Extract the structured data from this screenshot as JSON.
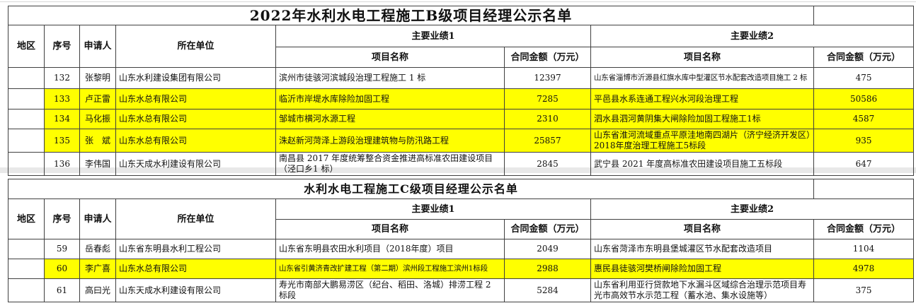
{
  "page": {
    "colors": {
      "background": "#ffffff",
      "highlight": "#ffff00",
      "border": "#404040",
      "pane_separator": "#e8e8e8"
    }
  },
  "tables": [
    {
      "id": "b-level",
      "title": "2022年水利水电工程施工B级项目经理公示名单",
      "columns": {
        "region": "地区",
        "no": "序号",
        "applicant": "申请人",
        "company": "所在单位",
        "perf1": "主要业绩1",
        "perf2": "主要业绩2",
        "project1": "项目名称",
        "amount1": "合同金额（万元）",
        "project2": "项目名称",
        "amount2": "合同金额（万元）"
      },
      "rows": [
        {
          "region": "",
          "no": "132",
          "applicant": "张黎明",
          "company": "山东水利建设集团有限公司",
          "project1": "滨州市徒骇河滨城段治理工程施工 1 标",
          "amount1": "12397",
          "project2": "山东省淄博市沂源县红旗水库中型灌区节水配套改造项目施工 2 标",
          "amount2": "475",
          "highlighted": false,
          "shrink": [
            "project2"
          ]
        },
        {
          "region": "",
          "no": "133",
          "applicant": "卢正雷",
          "company": "山东水总有限公司",
          "project1": "临沂市岸堤水库除险加固工程",
          "amount1": "7285",
          "project2": "平邑县水系连通工程兴水河段治理工程",
          "amount2": "50586",
          "highlighted": true,
          "shrink": []
        },
        {
          "region": "",
          "no": "134",
          "applicant": "马化振",
          "company": "山东水总有限公司",
          "project1": "邹城市横河水源工程",
          "amount1": "2310",
          "project2": "泗水县泗河黄阴集大闸除险加固工程施工1标",
          "amount2": "4587",
          "highlighted": true,
          "shrink": []
        },
        {
          "region": "",
          "no": "135",
          "applicant": "张　斌",
          "company": "山东水总有限公司",
          "project1": "洙赵新河菏泽上游段治理建筑物与防汛路工程",
          "amount1": "25857",
          "project2": "山东省淮河流域重点平原洼地南四湖片（济宁经济开发区）2018年度治理工程施工5标段",
          "amount2": "935",
          "highlighted": true,
          "shrink": []
        },
        {
          "region": "",
          "no": "136",
          "applicant": "李伟国",
          "company": "山东天成水利建设有限公司",
          "project1": "南昌县 2017 年度统筹整合资金推进高标准农田建设项目（泾口乡1 标）",
          "amount1": "2845",
          "project2": "武宁县 2021 年度高标准农田建设项目施工五标段",
          "amount2": "647",
          "highlighted": false,
          "shrink": []
        }
      ]
    },
    {
      "id": "c-level",
      "title": "水利水电工程施工C级项目经理公示名单",
      "columns": {
        "region": "地区",
        "no": "序号",
        "applicant": "申请人",
        "company": "所在单位",
        "perf1": "主要业绩1",
        "perf2": "主要业绩2",
        "project1": "项目名称",
        "amount1": "合同金额（万元）",
        "project2": "项目名称",
        "amount2": "合同金额（万元）"
      },
      "rows": [
        {
          "region": "",
          "no": "59",
          "applicant": "岳春彪",
          "company": "山东省东明县水利工程公司",
          "project1": "山东省东明县农田水利项目（2018年度）项目",
          "amount1": "2049",
          "project2": "山东省菏泽市东明县堡城灌区节水配套改造项目",
          "amount2": "1104",
          "highlighted": false,
          "shrink": []
        },
        {
          "region": "",
          "no": "60",
          "applicant": "李广喜",
          "company": "山东水总有限公司",
          "project1": "山东省引黄济青改扩建工程（第二期）滨州段工程施工滨州1标段",
          "amount1": "2988",
          "project2": "惠民县徒骇河樊桥闸除险加固工程",
          "amount2": "4978",
          "highlighted": true,
          "shrink": [
            "project1"
          ]
        },
        {
          "region": "",
          "no": "61",
          "applicant": "高曰光",
          "company": "山东天成水利建设有限公司",
          "project1": "寿光市南部大鹏易涝区（纪台、稻田、洛城）排涝工程 2 标段",
          "amount1": "5284",
          "project2": "山东省利用亚行贷款地下水漏斗区域综合治理示范项目寿光市高效节水示范工程（蓄水池、集水设施等）",
          "amount2": "375",
          "highlighted": false,
          "shrink": []
        }
      ]
    }
  ]
}
